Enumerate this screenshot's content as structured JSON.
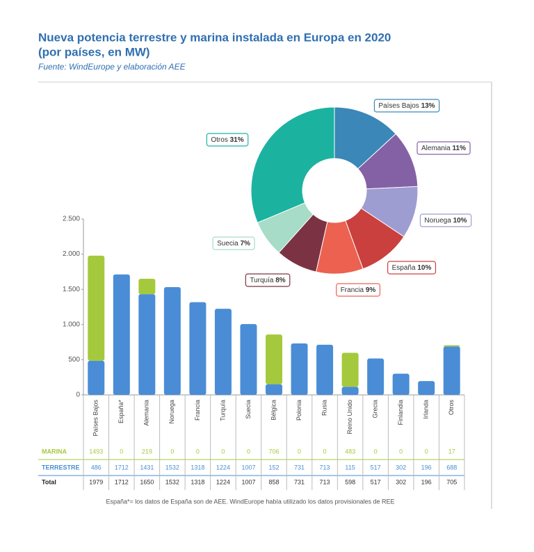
{
  "header": {
    "title_line1": "Nueva potencia terrestre y marina instalada en Europa en 2020",
    "title_line2": "(por países, en MW)",
    "subtitle": "Fuente: WindEurope y elaboración AEE"
  },
  "chart_data": [
    {
      "type": "bar",
      "stacked": true,
      "categories": [
        "Países Bajos",
        "España*",
        "Alemania",
        "Noruega",
        "Francia",
        "Turquía",
        "Suecia",
        "Bélgica",
        "Polonia",
        "Rusia",
        "Reino Unido",
        "Grecia",
        "Finlandia",
        "Irlanda",
        "Otros"
      ],
      "series": [
        {
          "name": "MARINA",
          "color": "#a5c93c",
          "values": [
            1493,
            0,
            219,
            0,
            0,
            0,
            0,
            706,
            0,
            0,
            483,
            0,
            0,
            0,
            17
          ]
        },
        {
          "name": "TERRESTRE",
          "color": "#4a8dd6",
          "values": [
            486,
            1712,
            1431,
            1532,
            1318,
            1224,
            1007,
            152,
            731,
            713,
            115,
            517,
            302,
            196,
            688
          ]
        }
      ],
      "totals_label": "Total",
      "totals": [
        1979,
        1712,
        1650,
        1532,
        1318,
        1224,
        1007,
        858,
        731,
        713,
        598,
        517,
        302,
        196,
        705
      ],
      "ylim": [
        0,
        2500
      ],
      "yticks": [
        0,
        500,
        {
          "value": 1000,
          "label": "1.000"
        },
        {
          "value": 1500,
          "label": "1.500"
        },
        {
          "value": 2000,
          "label": "2.000"
        },
        {
          "value": 2500,
          "label": "2.500"
        }
      ],
      "grid": false,
      "note": "España*= los datos de España son de AEE. WindEurope había utilizado los datos provisionales de REE"
    },
    {
      "type": "pie",
      "donut": true,
      "categories": [
        "Países Bajos",
        "Alemania",
        "Noruega",
        "España",
        "Francia",
        "Turquía",
        "Suecia",
        "Otros"
      ],
      "values": [
        13,
        11,
        10,
        10,
        9,
        8,
        7,
        31
      ],
      "value_labels": [
        "13%",
        "11%",
        "10%",
        "10%",
        "9%",
        "8%",
        "7%",
        "31%"
      ],
      "colors": [
        "#3a87b8",
        "#8461a5",
        "#9d9dd2",
        "#c9403f",
        "#ec6150",
        "#7b3343",
        "#a6dcc8",
        "#1bb3a0"
      ]
    }
  ]
}
